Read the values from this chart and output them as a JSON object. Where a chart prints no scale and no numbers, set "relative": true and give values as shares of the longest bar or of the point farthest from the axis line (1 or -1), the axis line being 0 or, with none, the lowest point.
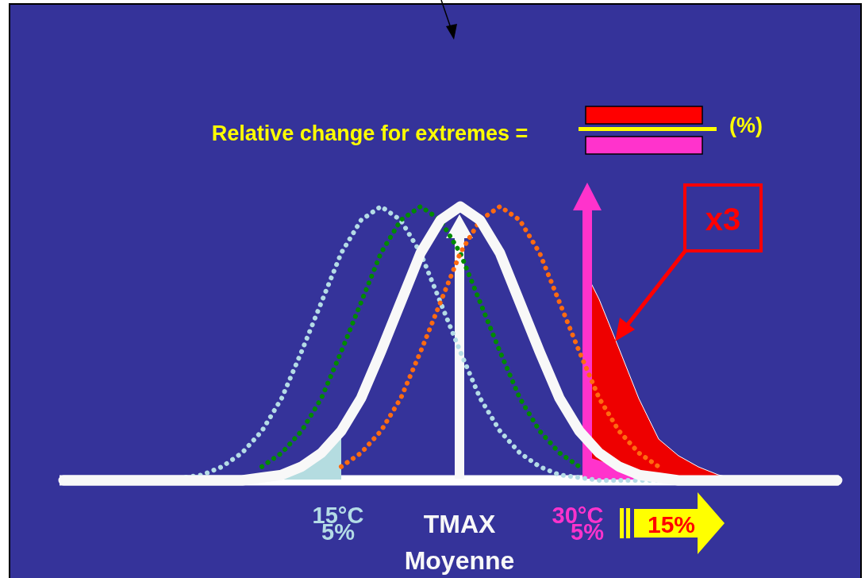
{
  "chart_data": {
    "type": "line",
    "relative": true,
    "categories": [
      null,
      null,
      null,
      null,
      null,
      null,
      null,
      null,
      null,
      null,
      null,
      null,
      null,
      null,
      null,
      null,
      null,
      null,
      null,
      null,
      null,
      null,
      null,
      null,
      null,
      null,
      null,
      null,
      null,
      null,
      null,
      null,
      null,
      null,
      null,
      null,
      null,
      null,
      null,
      null
    ],
    "series": [
      {
        "color": "#b4dce6",
        "line_style": "dotted",
        "values": [
          0,
          0,
          0,
          0,
          0,
          0,
          0.01,
          0.02,
          0.05,
          0.1,
          0.18,
          0.3,
          0.47,
          0.65,
          0.83,
          0.95,
          1,
          0.95,
          0.83,
          0.65,
          0.47,
          0.3,
          0.18,
          0.1,
          0.05,
          0.02,
          0.01,
          0,
          0,
          0,
          0,
          0,
          0,
          0,
          0,
          0,
          0,
          0,
          0,
          0
        ]
      },
      {
        "color": "#008a00",
        "line_style": "dotted",
        "values": [
          null,
          null,
          null,
          null,
          null,
          null,
          null,
          null,
          null,
          null,
          0.05,
          0.1,
          0.18,
          0.3,
          0.47,
          0.65,
          0.83,
          0.95,
          1,
          0.95,
          0.83,
          0.65,
          0.47,
          0.3,
          0.18,
          0.1,
          0.05,
          null,
          null,
          null,
          null,
          null,
          null,
          null,
          null,
          null,
          null,
          null,
          null,
          null
        ]
      },
      {
        "color": "#ff6a10",
        "line_style": "dotted",
        "values": [
          null,
          null,
          null,
          null,
          null,
          null,
          null,
          null,
          null,
          null,
          null,
          null,
          null,
          null,
          0.05,
          0.1,
          0.18,
          0.3,
          0.47,
          0.65,
          0.83,
          0.95,
          1,
          0.95,
          0.83,
          0.65,
          0.47,
          0.3,
          0.18,
          0.1,
          0.05,
          null,
          null,
          null,
          null,
          null,
          null,
          null,
          null,
          null
        ]
      },
      {
        "color": "#f8f8f8",
        "line_style": "solid",
        "values": [
          0,
          0,
          0,
          0,
          0,
          0,
          0,
          0,
          0,
          0,
          0.01,
          0.02,
          0.05,
          0.1,
          0.18,
          0.3,
          0.47,
          0.65,
          0.83,
          0.95,
          1,
          0.95,
          0.83,
          0.65,
          0.47,
          0.3,
          0.18,
          0.1,
          0.05,
          0.02,
          0.01,
          0,
          0,
          0,
          0,
          0,
          0,
          0,
          0,
          0
        ]
      }
    ],
    "ref_lines": [
      {
        "axis": "y",
        "value": 0,
        "color": "#ffffff"
      }
    ],
    "annotations": [
      "Relative change for extremes =",
      "(%)",
      "x3",
      "15°C",
      "5%",
      "TMAX",
      "Moyenne",
      "30°C",
      "5%",
      "15%"
    ]
  }
}
